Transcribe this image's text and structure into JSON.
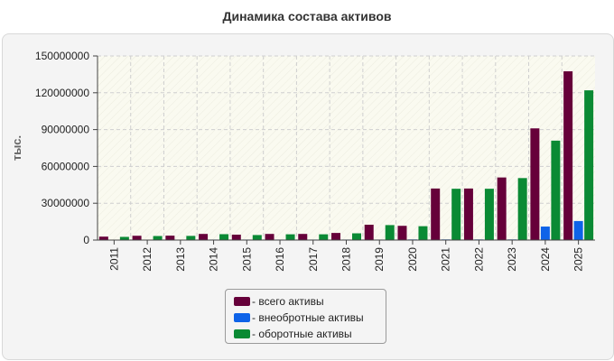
{
  "title": "Динамика состава активов",
  "chart_data": {
    "type": "bar",
    "title": "Динамика состава активов",
    "xlabel": "",
    "ylabel": "тыс.",
    "ylim": [
      0,
      150000000
    ],
    "yticks": [
      0,
      30000000,
      60000000,
      90000000,
      120000000,
      150000000
    ],
    "ytick_labels": [
      "0",
      "30000000",
      "60000000",
      "90000000",
      "120000000",
      "150000000"
    ],
    "grid": true,
    "legend_position": "bottom",
    "categories": [
      "2011",
      "2012",
      "2013",
      "2014",
      "2015",
      "2016",
      "2017",
      "2018",
      "2019",
      "2020",
      "2021",
      "2022",
      "2023",
      "2024",
      "2025"
    ],
    "series": [
      {
        "name": "- всего активы",
        "color": "#66003a",
        "values": [
          2800000,
          3500000,
          3600000,
          5000000,
          4400000,
          5000000,
          5000000,
          5800000,
          12500000,
          11600000,
          42000000,
          42000000,
          51000000,
          91000000,
          137500000
        ]
      },
      {
        "name": "- внеобротные активы",
        "color": "#0e63e8",
        "values": [
          300000,
          300000,
          300000,
          400000,
          400000,
          400000,
          400000,
          400000,
          400000,
          500000,
          500000,
          500000,
          500000,
          11000000,
          15500000
        ]
      },
      {
        "name": "- оборотные активы",
        "color": "#0a8a34",
        "values": [
          2600000,
          3300000,
          3400000,
          4800000,
          4100000,
          4700000,
          4700000,
          5500000,
          12200000,
          11300000,
          41800000,
          41800000,
          50500000,
          81000000,
          122000000
        ]
      }
    ]
  }
}
